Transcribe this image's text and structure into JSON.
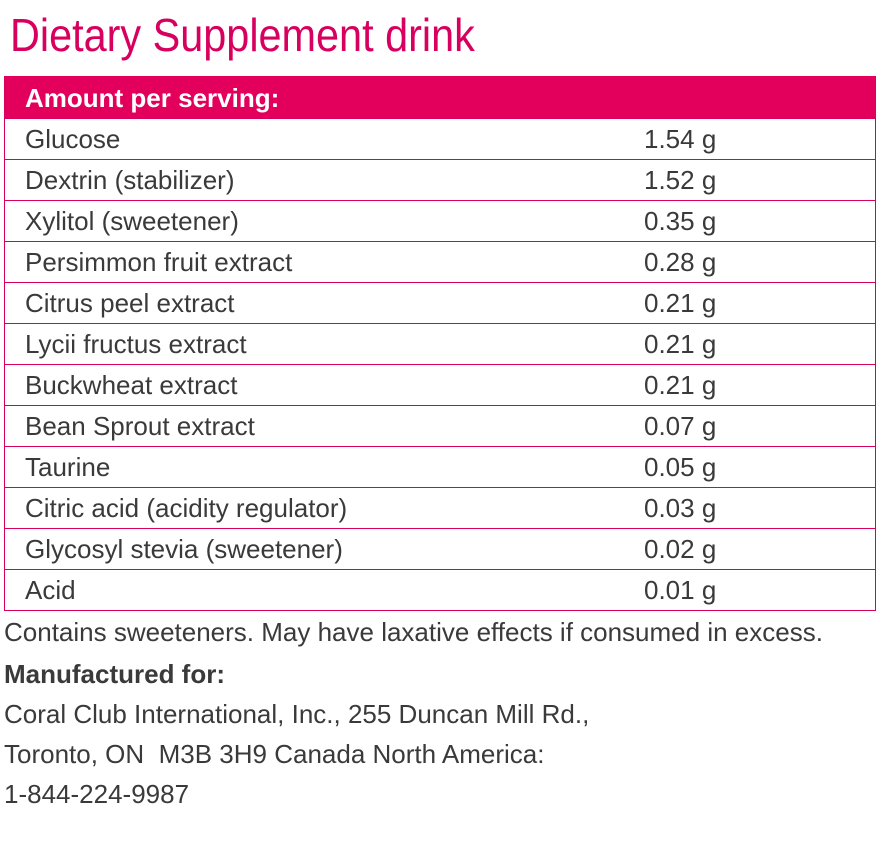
{
  "header": {
    "title": "Dietary Supplement drink"
  },
  "table": {
    "heading": "Amount per serving:",
    "rows": [
      [
        "Glucose",
        "1.54 g"
      ],
      [
        "Dextrin (stabilizer)",
        "1.52 g"
      ],
      [
        "Xylitol (sweetener)",
        "0.35 g"
      ],
      [
        "Persimmon fruit extract",
        "0.28 g"
      ],
      [
        "Citrus peel extract",
        "0.21 g"
      ],
      [
        "Lycii fructus extract",
        "0.21 g"
      ],
      [
        "Buckwheat extract",
        "0.21 g"
      ],
      [
        "Bean Sprout extract",
        "0.07 g"
      ],
      [
        "Taurine",
        "0.05 g"
      ],
      [
        "Citric acid (acidity regulator)",
        "0.03 g"
      ],
      [
        "Glycosyl stevia (sweetener)",
        "0.02 g"
      ],
      [
        "Acid",
        "0.01 g"
      ]
    ]
  },
  "notes": {
    "warning": "Contains sweeteners. May have laxative effects if consumed in excess.",
    "manufacturer_heading": "Manufactured for:",
    "manufacturer_lines": [
      "Coral Club International, Inc., 255 Duncan Mill Rd.,",
      "Toronto, ON  M3B 3H9 Canada North America:",
      "1-844-224-9987"
    ]
  }
}
